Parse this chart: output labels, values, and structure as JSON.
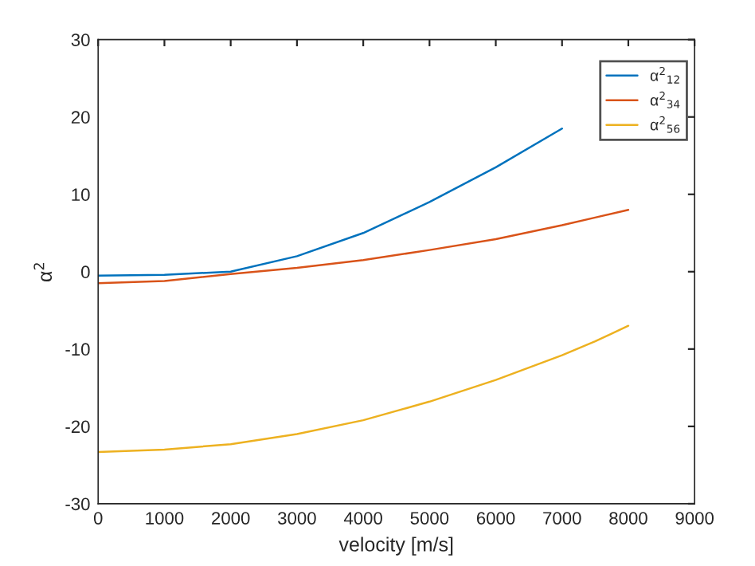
{
  "chart_data": {
    "type": "line",
    "xlabel": "velocity [m/s]",
    "ylabel": "α$^{2}$",
    "x": [
      0,
      1000,
      2000,
      3000,
      4000,
      5000,
      6000,
      7000,
      7500,
      8000
    ],
    "series": [
      {
        "name": "α$^{2}$$_{12}$",
        "color": "#0072bd",
        "values": [
          -0.5,
          -0.4,
          0,
          2,
          5,
          9,
          13.5,
          18.5,
          null,
          null
        ]
      },
      {
        "name": "α$^{2}$$_{34}$",
        "color": "#d95319",
        "values": [
          -1.5,
          -1.2,
          -0.3,
          0.5,
          1.5,
          2.8,
          4.2,
          6,
          7,
          8
        ]
      },
      {
        "name": "α$^{2}$$_{56}$",
        "color": "#edb120",
        "values": [
          -23.3,
          -23,
          -22.3,
          -21,
          -19.2,
          -16.8,
          -14,
          -10.8,
          -9,
          -7
        ]
      }
    ],
    "xlim": [
      0,
      9000
    ],
    "xticks": [
      0,
      1000,
      2000,
      3000,
      4000,
      5000,
      6000,
      7000,
      8000,
      9000
    ],
    "ylim": [
      -30,
      30
    ],
    "yticks": [
      -30,
      -20,
      -10,
      0,
      10,
      20,
      30
    ],
    "legend": "top right",
    "grid": false
  }
}
